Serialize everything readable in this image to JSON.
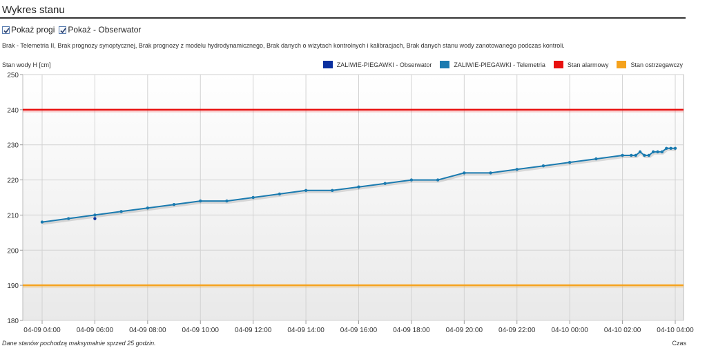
{
  "header": {
    "title": "Wykres stanu"
  },
  "options": {
    "show_thresholds": {
      "label": "Pokaż progi",
      "checked": true
    },
    "show_observer": {
      "label": "Pokaż - Obserwator",
      "checked": true
    }
  },
  "note": "Brak - Telemetria II, Brak prognozy synoptycznej, Brak prognozy z modelu hydrodynamicznego, Brak danych o wizytach kontrolnych i kalibracjach, Brak danych stanu wody zanotowanego podczas kontroli.",
  "footer": {
    "note": "Dane stanów pochodzą maksymalnie sprzed 25 godzin.",
    "xlabel": "Czas"
  },
  "chart_data": {
    "type": "line",
    "ylabel": "Stan wody H [cm]",
    "xlabel": "Czas",
    "ylim": [
      180,
      250
    ],
    "yticks": [
      180,
      190,
      200,
      210,
      220,
      230,
      240,
      250
    ],
    "xlim": [
      "04-09 04:00",
      "04-10 04:00"
    ],
    "xticks": [
      "04-09 04:00",
      "04-09 06:00",
      "04-09 08:00",
      "04-09 10:00",
      "04-09 12:00",
      "04-09 14:00",
      "04-09 16:00",
      "04-09 18:00",
      "04-09 20:00",
      "04-09 22:00",
      "04-10 00:00",
      "04-10 02:00",
      "04-10 04:00"
    ],
    "grid": true,
    "legend_position": "top-right",
    "series": [
      {
        "name": "ZALIWIE-PIEGAWKI - Obserwator",
        "color": "#0a2f9f",
        "x": [
          "04-09 06:00"
        ],
        "y": [
          209
        ]
      },
      {
        "name": "ZALIWIE-PIEGAWKI - Telemetria",
        "color": "#1b7bb0",
        "x": [
          "04-09 04:00",
          "04-09 05:00",
          "04-09 06:00",
          "04-09 07:00",
          "04-09 08:00",
          "04-09 09:00",
          "04-09 10:00",
          "04-09 11:00",
          "04-09 12:00",
          "04-09 13:00",
          "04-09 14:00",
          "04-09 15:00",
          "04-09 16:00",
          "04-09 17:00",
          "04-09 18:00",
          "04-09 19:00",
          "04-09 20:00",
          "04-09 21:00",
          "04-09 22:00",
          "04-09 23:00",
          "04-10 00:00",
          "04-10 01:00",
          "04-10 02:00",
          "04-10 02:20",
          "04-10 02:30",
          "04-10 02:40",
          "04-10 02:50",
          "04-10 03:00",
          "04-10 03:10",
          "04-10 03:20",
          "04-10 03:30",
          "04-10 03:40",
          "04-10 03:50",
          "04-10 04:00"
        ],
        "y": [
          208,
          209,
          210,
          211,
          212,
          213,
          214,
          214,
          215,
          216,
          217,
          217,
          218,
          219,
          220,
          220,
          222,
          222,
          223,
          224,
          225,
          226,
          227,
          227,
          227,
          228,
          227,
          227,
          228,
          228,
          228,
          229,
          229,
          229
        ]
      }
    ],
    "thresholds": [
      {
        "name": "Stan alarmowy",
        "value": 240,
        "color": "#e8100f"
      },
      {
        "name": "Stan ostrzegawczy",
        "value": 190,
        "color": "#f5a21c"
      }
    ]
  }
}
